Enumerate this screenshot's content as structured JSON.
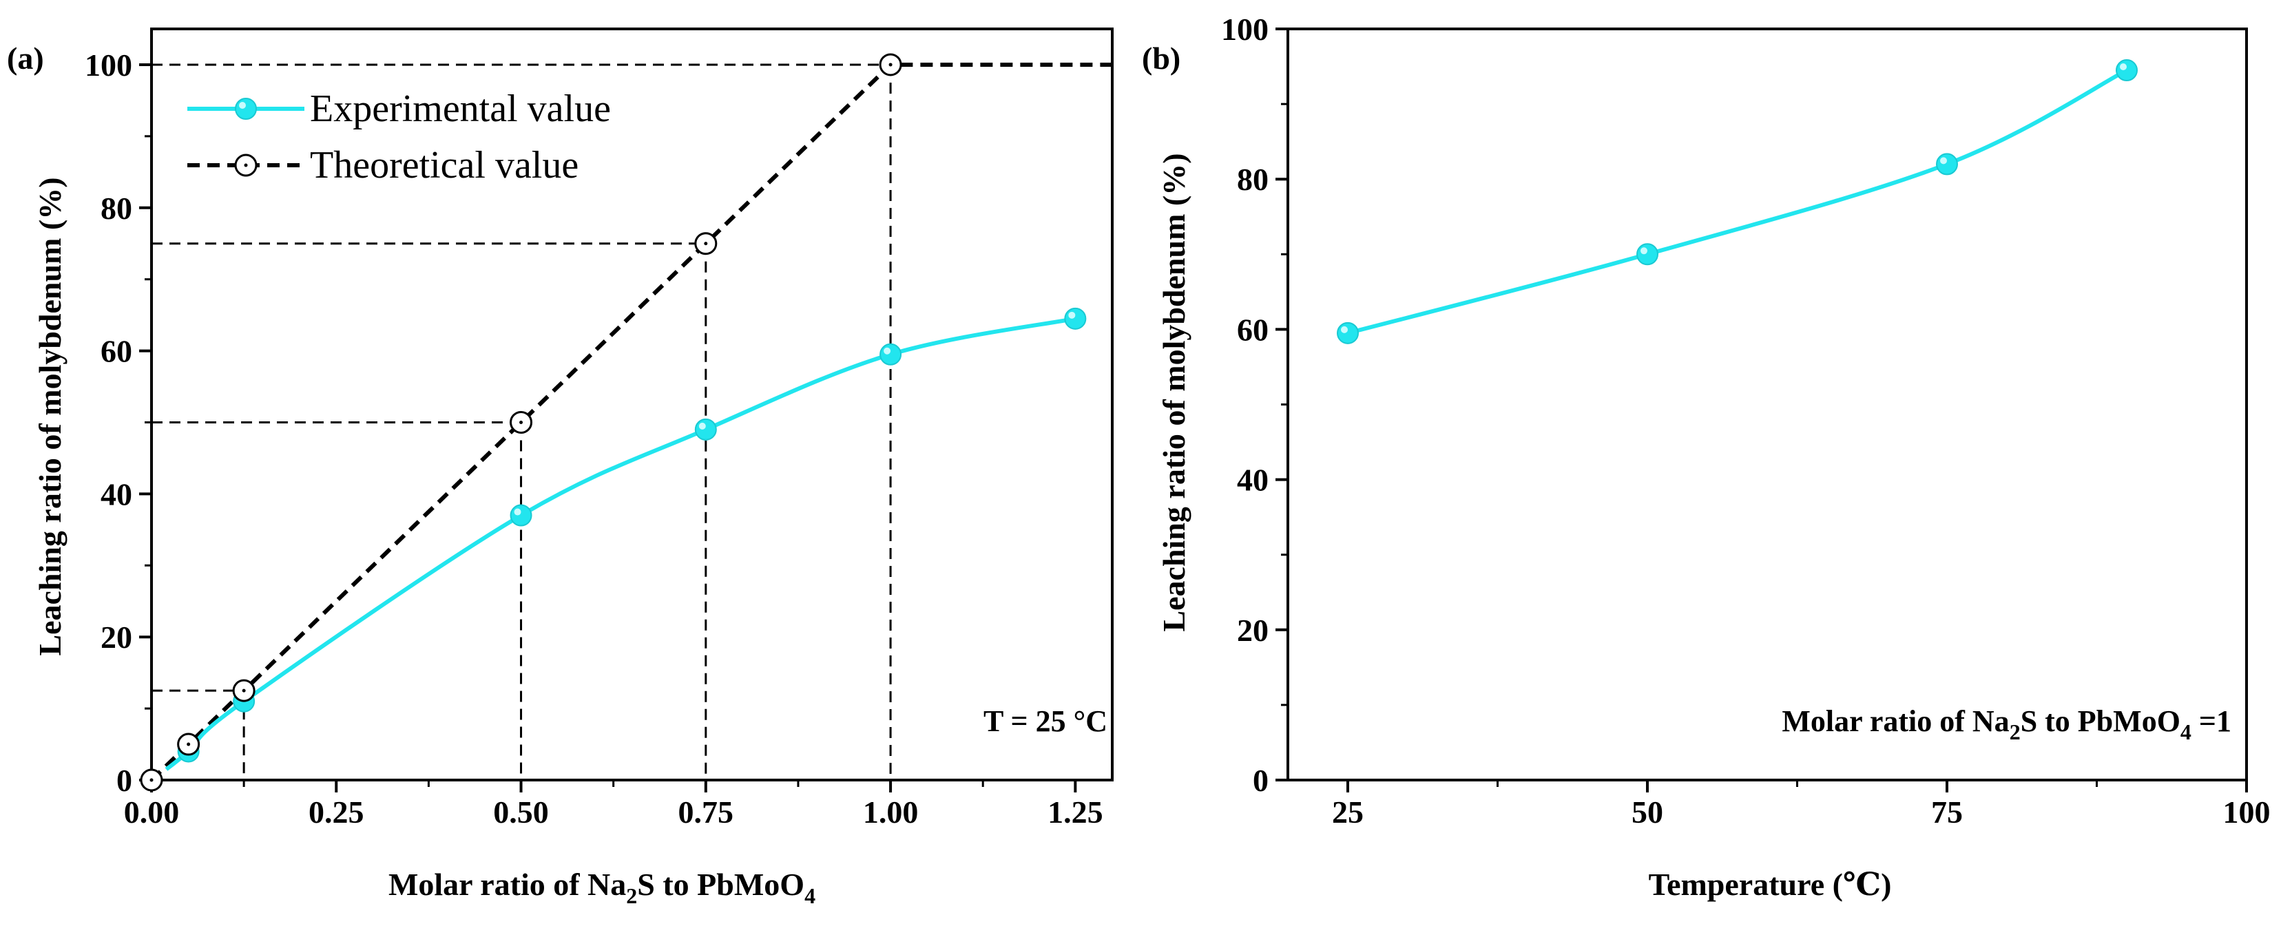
{
  "chart_data": [
    {
      "panel": "(a)",
      "type": "line",
      "xlabel": "Molar ratio of  Na₂S to PbMoO₄",
      "xlabel_parts": {
        "prefix": "Molar ratio of  Na",
        "sub1": "2",
        "middle": "S to PbMoO",
        "sub2": "4"
      },
      "ylabel": "Leaching ratio of molybdenum  (%)",
      "xlim": [
        0,
        1.3
      ],
      "ylim": [
        0,
        105
      ],
      "xticks": [
        "0.00",
        "0.25",
        "0.50",
        "0.75",
        "1.00",
        "1.25"
      ],
      "xtick_values": [
        0,
        0.25,
        0.5,
        0.75,
        1.0,
        1.25
      ],
      "yticks": [
        "0",
        "20",
        "40",
        "60",
        "80",
        "100"
      ],
      "ytick_values": [
        0,
        20,
        40,
        60,
        80,
        100
      ],
      "annotation": "T = 25 °C",
      "series": [
        {
          "name": "Experimental value",
          "color": "#22e5ee",
          "style": "solid",
          "marker": "filled-circle",
          "x": [
            0.05,
            0.125,
            0.5,
            0.75,
            1.0,
            1.25
          ],
          "y": [
            4,
            11,
            37,
            49,
            59.5,
            64.5
          ]
        },
        {
          "name": "Theoretical value",
          "color": "#000000",
          "style": "dashed",
          "marker": "open-circle",
          "x": [
            0,
            0.05,
            0.125,
            0.5,
            0.75,
            1.0
          ],
          "y": [
            0,
            5,
            12.5,
            50,
            75,
            100
          ]
        }
      ]
    },
    {
      "panel": "(b)",
      "type": "line",
      "xlabel": "Temperature (℃)",
      "ylabel": "Leaching ratio of molybdenum  (%)",
      "xlim": [
        20,
        100
      ],
      "ylim": [
        0,
        100
      ],
      "xticks": [
        "25",
        "50",
        "75",
        "100"
      ],
      "xtick_values": [
        25,
        50,
        75,
        100
      ],
      "yticks": [
        "0",
        "20",
        "40",
        "60",
        "80",
        "100"
      ],
      "ytick_values": [
        0,
        20,
        40,
        60,
        80,
        100
      ],
      "annotation": "Molar ratio of Na₂S to PbMoO₄ =1",
      "annotation_parts": {
        "prefix": "Molar ratio of Na",
        "sub1": "2",
        "middle": "S to PbMoO",
        "sub2": "4",
        "suffix": " =1"
      },
      "series": [
        {
          "name": "Experimental value",
          "color": "#22e5ee",
          "style": "solid",
          "marker": "filled-circle",
          "x": [
            25,
            50,
            75,
            90
          ],
          "y": [
            59.5,
            70,
            82,
            94.5
          ]
        }
      ]
    }
  ]
}
